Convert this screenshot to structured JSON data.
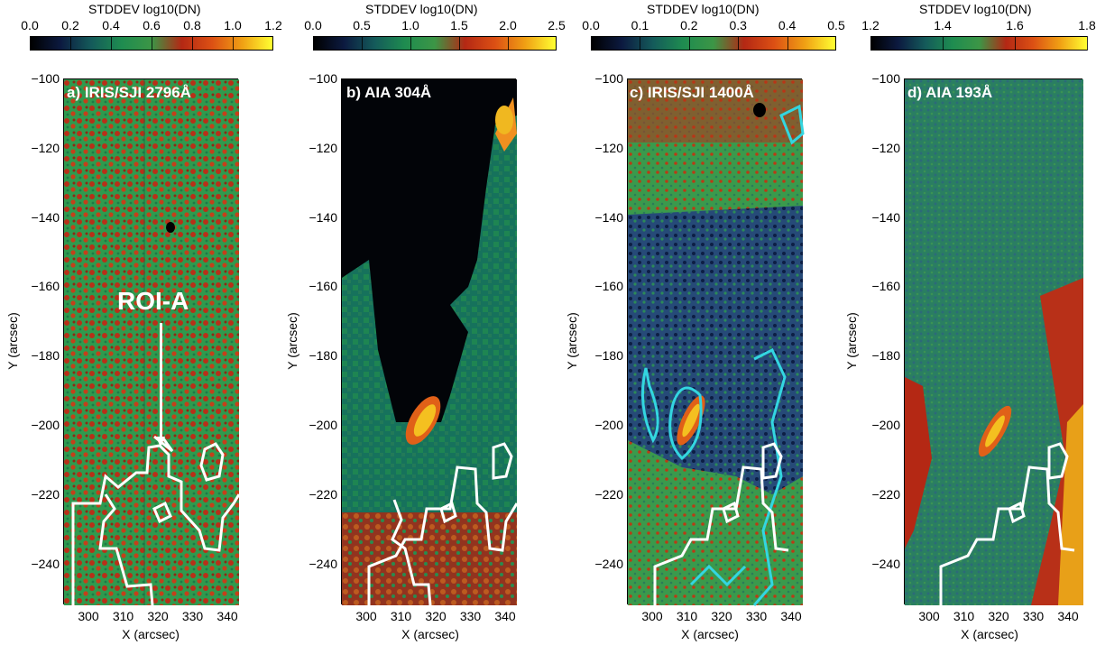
{
  "colorbar_title": "STDDEV log10(DN)",
  "y_axis_label": "Y (arcsec)",
  "x_axis_label": "X (arcsec)",
  "y_ticks": [
    "−100",
    "−120",
    "−140",
    "−160",
    "−180",
    "−200",
    "−220",
    "−240"
  ],
  "x_ticks": [
    "300",
    "310",
    "320",
    "330",
    "340"
  ],
  "roi_label": "ROI-A",
  "panels": [
    {
      "label": "a)   IRIS/SJI 2796Å",
      "cb_ticks": [
        "0.0",
        "0.2",
        "0.4",
        "0.6",
        "0.8",
        "1.0",
        "1.2"
      ]
    },
    {
      "label": "b) AIA 304Å",
      "cb_ticks": [
        "0.0",
        "0.5",
        "1.0",
        "1.5",
        "2.0",
        "2.5"
      ]
    },
    {
      "label": "c) IRIS/SJI 1400Å",
      "cb_ticks": [
        "0.0",
        "0.1",
        "0.2",
        "0.3",
        "0.4",
        "0.5"
      ]
    },
    {
      "label": "d) AIA 193Å",
      "cb_ticks": [
        "1.2",
        "1.4",
        "1.6",
        "1.8"
      ]
    }
  ],
  "colors": {
    "colormap": [
      "#000000",
      "#0c1a40",
      "#145a5a",
      "#1e8c50",
      "#3c9646",
      "#b42814",
      "#dc5014",
      "#f0a014",
      "#ffff32"
    ],
    "contour_white": "#ffffff",
    "contour_cyan": "#33d6e0"
  }
}
